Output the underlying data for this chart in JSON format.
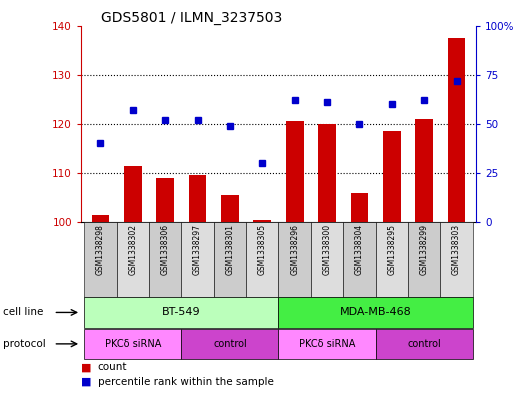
{
  "title": "GDS5801 / ILMN_3237503",
  "samples": [
    "GSM1338298",
    "GSM1338302",
    "GSM1338306",
    "GSM1338297",
    "GSM1338301",
    "GSM1338305",
    "GSM1338296",
    "GSM1338300",
    "GSM1338304",
    "GSM1338295",
    "GSM1338299",
    "GSM1338303"
  ],
  "bar_values": [
    101.5,
    111.5,
    109.0,
    109.5,
    105.5,
    100.5,
    120.5,
    120.0,
    106.0,
    118.5,
    121.0,
    137.5
  ],
  "dot_values": [
    40,
    57,
    52,
    52,
    49,
    30,
    62,
    61,
    50,
    60,
    62,
    72
  ],
  "ylim_left": [
    100,
    140
  ],
  "ylim_right": [
    0,
    100
  ],
  "yticks_left": [
    100,
    110,
    120,
    130,
    140
  ],
  "yticks_right": [
    0,
    25,
    50,
    75,
    100
  ],
  "ytick_labels_right": [
    "0",
    "25",
    "50",
    "75",
    "100%"
  ],
  "bar_color": "#cc0000",
  "dot_color": "#0000cc",
  "cell_line_color_bt": "#bbffbb",
  "cell_line_color_mda": "#44ee44",
  "protocol_color_sirna": "#ff88ff",
  "protocol_color_ctrl": "#cc44cc",
  "legend_count_label": "count",
  "legend_pct_label": "percentile rank within the sample",
  "cell_line_row_label": "cell line",
  "protocol_row_label": "protocol",
  "protocol_labels": [
    "PKCδ siRNA",
    "control",
    "PKCδ siRNA",
    "control"
  ],
  "title_fontsize": 10,
  "tick_fontsize": 7.5,
  "sample_fontsize": 5.5
}
